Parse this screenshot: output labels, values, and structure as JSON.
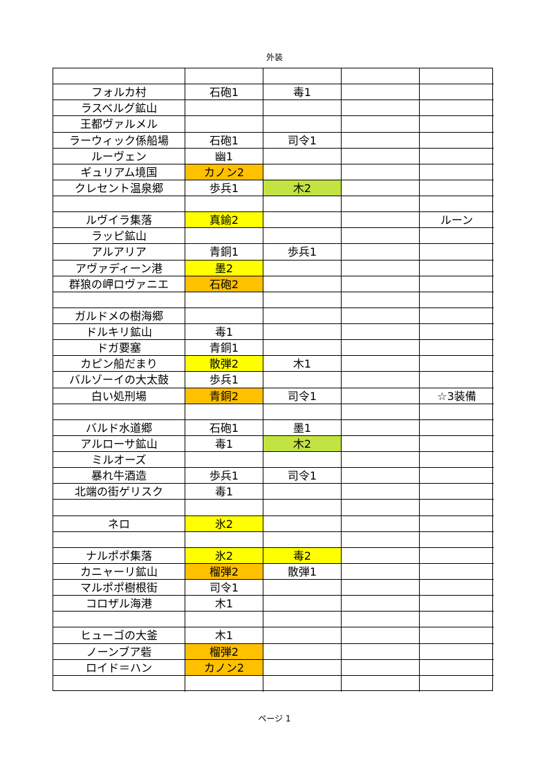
{
  "page_title": "外装",
  "footer": "ページ 1",
  "fill_colors": {
    "yellow": "#ffff00",
    "orange": "#ffc000",
    "green": "#c2e342"
  },
  "rows": [
    {
      "cells": [
        "",
        "",
        "",
        "",
        ""
      ]
    },
    {
      "cells": [
        "フォルカ村",
        "石砲1",
        "毒1",
        "",
        ""
      ]
    },
    {
      "cells": [
        "ラスベルグ鉱山",
        "",
        "",
        "",
        ""
      ]
    },
    {
      "cells": [
        "王都ヴァルメル",
        "",
        "",
        "",
        ""
      ]
    },
    {
      "cells": [
        "ラーウィック係船場",
        "石砲1",
        "司令1",
        "",
        ""
      ]
    },
    {
      "cells": [
        "ルーヴェン",
        "幽1",
        "",
        "",
        ""
      ]
    },
    {
      "cells": [
        "ギュリアム境国",
        "カノン2",
        "",
        "",
        ""
      ],
      "fills": [
        null,
        "orange",
        null,
        null,
        null
      ]
    },
    {
      "cells": [
        "クレセント温泉郷",
        "歩兵1",
        "木2",
        "",
        ""
      ],
      "fills": [
        null,
        null,
        "green",
        null,
        null
      ]
    },
    {
      "cells": [
        "",
        "",
        "",
        "",
        ""
      ]
    },
    {
      "cells": [
        "ルヴイラ集落",
        "真鍮2",
        "",
        "",
        "ルーン"
      ],
      "fills": [
        null,
        "yellow",
        null,
        null,
        null
      ]
    },
    {
      "cells": [
        "ラッピ鉱山",
        "",
        "",
        "",
        ""
      ]
    },
    {
      "cells": [
        "アルアリア",
        "青銅1",
        "歩兵1",
        "",
        ""
      ]
    },
    {
      "cells": [
        "アヴァディーン港",
        "墨2",
        "",
        "",
        ""
      ],
      "fills": [
        null,
        "yellow",
        null,
        null,
        null
      ]
    },
    {
      "cells": [
        "群狼の岬ロヴァニエ",
        "石砲2",
        "",
        "",
        ""
      ],
      "fills": [
        null,
        "orange",
        null,
        null,
        null
      ]
    },
    {
      "cells": [
        "",
        "",
        "",
        "",
        ""
      ]
    },
    {
      "cells": [
        "ガルドメの樹海郷",
        "",
        "",
        "",
        ""
      ]
    },
    {
      "cells": [
        "ドルキリ鉱山",
        "毒1",
        "",
        "",
        ""
      ]
    },
    {
      "cells": [
        "ドガ要塞",
        "青銅1",
        "",
        "",
        ""
      ]
    },
    {
      "cells": [
        "カピン船だまり",
        "散弾2",
        "木1",
        "",
        ""
      ],
      "fills": [
        null,
        "yellow",
        null,
        null,
        null
      ]
    },
    {
      "cells": [
        "バルゾーイの大太鼓",
        "歩兵1",
        "",
        "",
        ""
      ]
    },
    {
      "cells": [
        "白い処刑場",
        "青銅2",
        "司令1",
        "",
        "☆3装備"
      ],
      "fills": [
        null,
        "orange",
        null,
        null,
        null
      ]
    },
    {
      "cells": [
        "",
        "",
        "",
        "",
        ""
      ]
    },
    {
      "cells": [
        "バルド水道郷",
        "石砲1",
        "墨1",
        "",
        ""
      ]
    },
    {
      "cells": [
        "アルローサ鉱山",
        "毒1",
        "木2",
        "",
        ""
      ],
      "fills": [
        null,
        null,
        "green",
        null,
        null
      ]
    },
    {
      "cells": [
        "ミルオーズ",
        "",
        "",
        "",
        ""
      ]
    },
    {
      "cells": [
        "暴れ牛酒造",
        "歩兵1",
        "司令1",
        "",
        ""
      ]
    },
    {
      "cells": [
        "北端の街ゲリスク",
        "毒1",
        "",
        "",
        ""
      ]
    },
    {
      "cells": [
        "",
        "",
        "",
        "",
        ""
      ]
    },
    {
      "cells": [
        "ネロ",
        "氷2",
        "",
        "",
        ""
      ],
      "fills": [
        null,
        "yellow",
        null,
        null,
        null
      ]
    },
    {
      "cells": [
        "",
        "",
        "",
        "",
        ""
      ]
    },
    {
      "cells": [
        "ナルポポ集落",
        "氷2",
        "毒2",
        "",
        ""
      ],
      "fills": [
        null,
        "yellow",
        "yellow",
        null,
        null
      ]
    },
    {
      "cells": [
        "カニャーリ鉱山",
        "榴弾2",
        "散弾1",
        "",
        ""
      ],
      "fills": [
        null,
        "orange",
        null,
        null,
        null
      ]
    },
    {
      "cells": [
        "マルポポ樹根街",
        "司令1",
        "",
        "",
        ""
      ]
    },
    {
      "cells": [
        "コロザル海港",
        "木1",
        "",
        "",
        ""
      ]
    },
    {
      "cells": [
        "",
        "",
        "",
        "",
        ""
      ]
    },
    {
      "cells": [
        "ヒューゴの大釜",
        "木1",
        "",
        "",
        ""
      ]
    },
    {
      "cells": [
        "ノーンブア砦",
        "榴弾2",
        "",
        "",
        ""
      ],
      "fills": [
        null,
        "orange",
        null,
        null,
        null
      ]
    },
    {
      "cells": [
        "ロイド＝ハン",
        "カノン2",
        "",
        "",
        ""
      ],
      "fills": [
        null,
        "orange",
        null,
        null,
        null
      ]
    },
    {
      "cells": [
        "",
        "",
        "",
        "",
        ""
      ]
    }
  ]
}
